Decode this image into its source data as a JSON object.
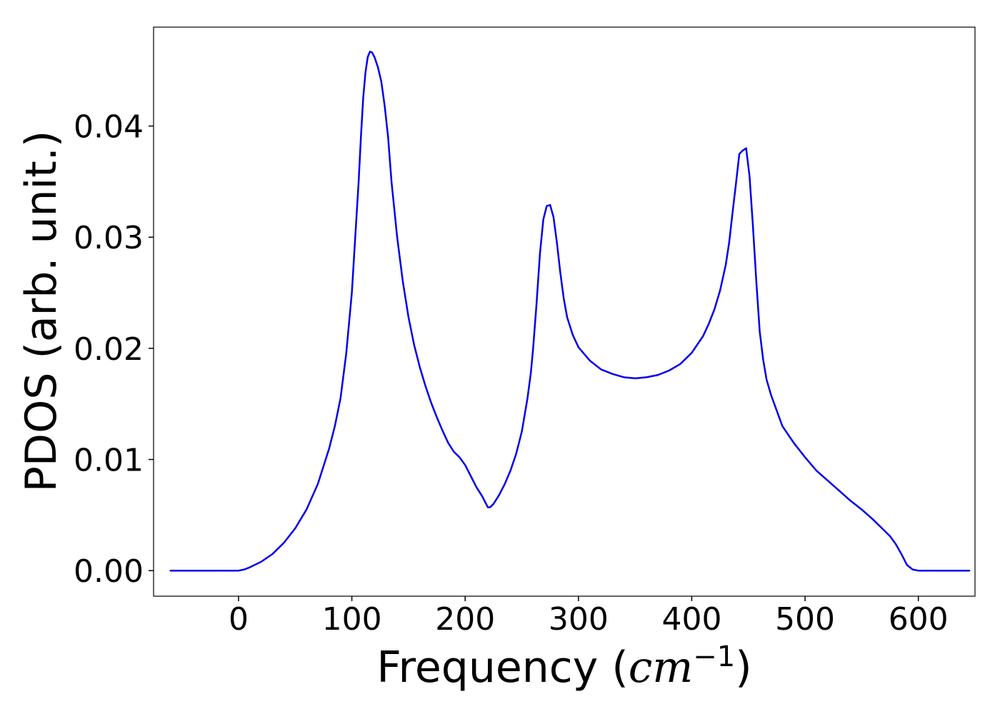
{
  "chart_data": {
    "type": "line",
    "xlabel_text": "Frequency (",
    "xlabel_math": "cm",
    "xlabel_sup": "−1",
    "xlabel_close": ")",
    "ylabel": "PDOS (arb. unit.)",
    "xlim": [
      -75,
      650
    ],
    "ylim": [
      -0.0023,
      0.0489
    ],
    "x_ticks": [
      0,
      100,
      200,
      300,
      400,
      500,
      600
    ],
    "x_tick_labels": [
      "0",
      "100",
      "200",
      "300",
      "400",
      "500",
      "600"
    ],
    "y_ticks": [
      0.0,
      0.01,
      0.02,
      0.03,
      0.04
    ],
    "y_tick_labels": [
      "0.00",
      "0.01",
      "0.02",
      "0.03",
      "0.04"
    ],
    "grid": false,
    "series": [
      {
        "color": "#0000ee",
        "x": [
          -60,
          -40,
          -20,
          0,
          5,
          10,
          20,
          30,
          40,
          50,
          60,
          70,
          80,
          85,
          90,
          95,
          100,
          103,
          106,
          108,
          110,
          112,
          114,
          116,
          118,
          120,
          123,
          126,
          129,
          132,
          135,
          140,
          145,
          150,
          155,
          160,
          165,
          170,
          175,
          180,
          185,
          190,
          195,
          200,
          205,
          210,
          215,
          218,
          220,
          222,
          225,
          230,
          235,
          240,
          245,
          250,
          255,
          258,
          260,
          263,
          266,
          269,
          272,
          275,
          278,
          281,
          284,
          287,
          290,
          295,
          300,
          310,
          320,
          330,
          340,
          350,
          360,
          370,
          380,
          390,
          400,
          410,
          415,
          420,
          425,
          430,
          433,
          436,
          439,
          442,
          445,
          448,
          451,
          454,
          457,
          460,
          463,
          466,
          470,
          475,
          480,
          490,
          500,
          510,
          520,
          530,
          540,
          550,
          560,
          570,
          575,
          580,
          585,
          590,
          595,
          600,
          610,
          620,
          630,
          645
        ],
        "y": [
          0.0,
          0.0,
          0.0,
          0.0,
          0.0001,
          0.0003,
          0.0008,
          0.0015,
          0.0025,
          0.0038,
          0.0055,
          0.0078,
          0.011,
          0.013,
          0.0155,
          0.0195,
          0.025,
          0.03,
          0.035,
          0.039,
          0.0425,
          0.0448,
          0.0462,
          0.0467,
          0.0466,
          0.0462,
          0.0453,
          0.044,
          0.0418,
          0.039,
          0.035,
          0.03,
          0.026,
          0.0228,
          0.0203,
          0.0183,
          0.0166,
          0.0151,
          0.0138,
          0.0126,
          0.0115,
          0.0107,
          0.0102,
          0.0095,
          0.0085,
          0.0075,
          0.0067,
          0.0061,
          0.0057,
          0.0057,
          0.006,
          0.0068,
          0.0078,
          0.009,
          0.0105,
          0.0125,
          0.0155,
          0.0178,
          0.02,
          0.024,
          0.0285,
          0.0316,
          0.0328,
          0.0329,
          0.0318,
          0.0295,
          0.0268,
          0.0245,
          0.0228,
          0.0212,
          0.0201,
          0.0189,
          0.0181,
          0.0177,
          0.0174,
          0.0173,
          0.0174,
          0.0176,
          0.018,
          0.0186,
          0.0196,
          0.0211,
          0.0222,
          0.0235,
          0.0252,
          0.0275,
          0.0295,
          0.0322,
          0.0348,
          0.0375,
          0.0378,
          0.038,
          0.0355,
          0.031,
          0.026,
          0.0215,
          0.019,
          0.0172,
          0.0158,
          0.0144,
          0.013,
          0.0115,
          0.0102,
          0.009,
          0.0081,
          0.0072,
          0.0063,
          0.0055,
          0.0046,
          0.0036,
          0.0031,
          0.0024,
          0.0015,
          0.0005,
          0.0001,
          0.0,
          0.0,
          0.0,
          0.0,
          0.0
        ]
      }
    ]
  }
}
